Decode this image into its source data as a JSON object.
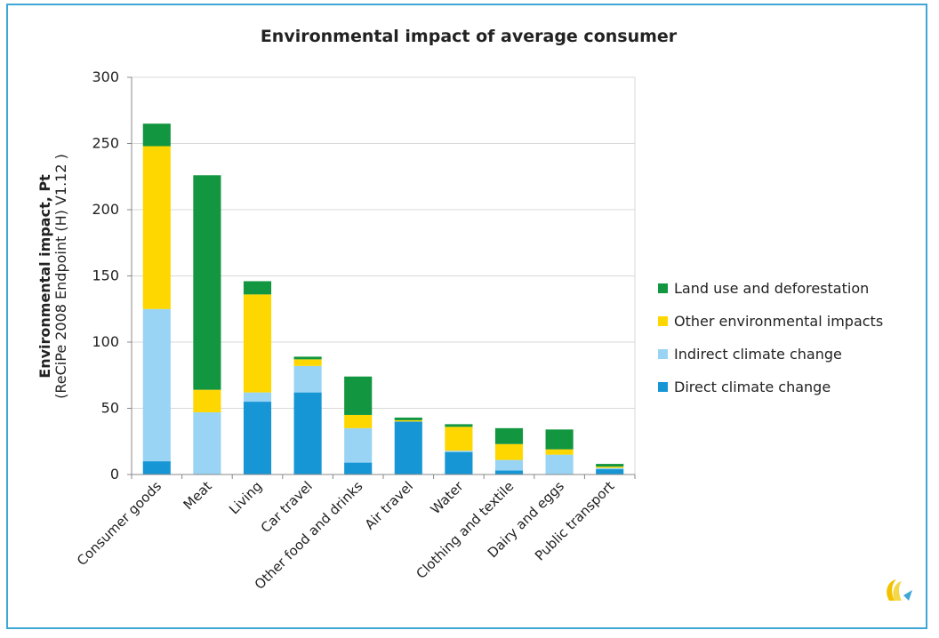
{
  "colors": {
    "land_use": "#12963f",
    "other_env": "#ffd700",
    "indirect": "#99d4f5",
    "direct": "#1796d6",
    "grid": "#d9d9d9",
    "axis": "#888888",
    "frame": "#3fa7d6"
  },
  "chart_data": {
    "type": "bar",
    "stacked": true,
    "title": "Environmental impact of average consumer",
    "ylabel_line1": "Environmental impact, Pt",
    "ylabel_line2": "(ReCiPe 2008 Endpoint (H) V1.12 )",
    "xlabel": "",
    "ylim": [
      0,
      300
    ],
    "yticks": [
      0,
      50,
      100,
      150,
      200,
      250,
      300
    ],
    "grid": true,
    "legend_position": "right",
    "categories": [
      "Consumer goods",
      "Meat",
      "Living",
      "Car travel",
      "Other food and drinks",
      "Air travel",
      "Water",
      "Clothing and textile",
      "Dairy and eggs",
      "Public transport"
    ],
    "series": [
      {
        "name": "Direct climate change",
        "color_key": "direct",
        "values": [
          10,
          0,
          55,
          62,
          9,
          40,
          17,
          3,
          0,
          4
        ]
      },
      {
        "name": "Indirect climate change",
        "color_key": "indirect",
        "values": [
          115,
          47,
          7,
          20,
          26,
          0,
          1,
          8,
          15,
          1
        ]
      },
      {
        "name": "Other environmental impacts",
        "color_key": "other_env",
        "values": [
          123,
          17,
          74,
          5,
          10,
          1,
          18,
          12,
          4,
          1
        ]
      },
      {
        "name": "Land use and deforestation",
        "color_key": "land_use",
        "values": [
          17,
          162,
          10,
          2,
          29,
          2,
          2,
          12,
          15,
          2
        ]
      }
    ],
    "legend_order": [
      "Land use and deforestation",
      "Other environmental impacts",
      "Indirect climate change",
      "Direct climate change"
    ]
  }
}
